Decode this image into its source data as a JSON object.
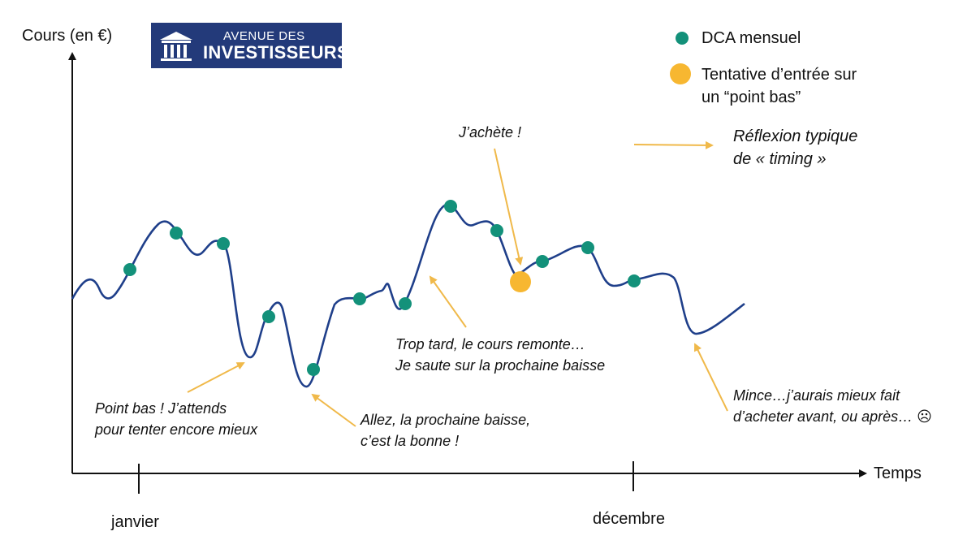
{
  "brand": {
    "line1": "AVENUE DES",
    "line2": "INVESTISSEURS",
    "color": "#233a7a"
  },
  "axes": {
    "y_label": "Cours (en €)",
    "x_label": "Temps",
    "tick_start": "janvier",
    "tick_end": "décembre"
  },
  "legend": {
    "dca_label": "DCA mensuel",
    "entry_label": "Tentative d’entrée sur\nun “point bas”",
    "arrow_label": "Réflexion typique\nde « timing »",
    "dca_color": "#13917a",
    "entry_color": "#f7b731",
    "arrow_color": "#f0b94a",
    "line_color": "#1f3f8a"
  },
  "annotations": {
    "buy": "J’achète !",
    "too_late": "Trop tard, le cours remonte…\nJe saute sur la prochaine baisse",
    "low_point": "Point bas ! J’attends\npour tenter encore mieux",
    "next_drop": "Allez, la prochaine baisse,\nc’est la bonne !",
    "darn": "Mince…j’aurais mieux fait\nd’acheter avant, ou après… ☹"
  }
}
